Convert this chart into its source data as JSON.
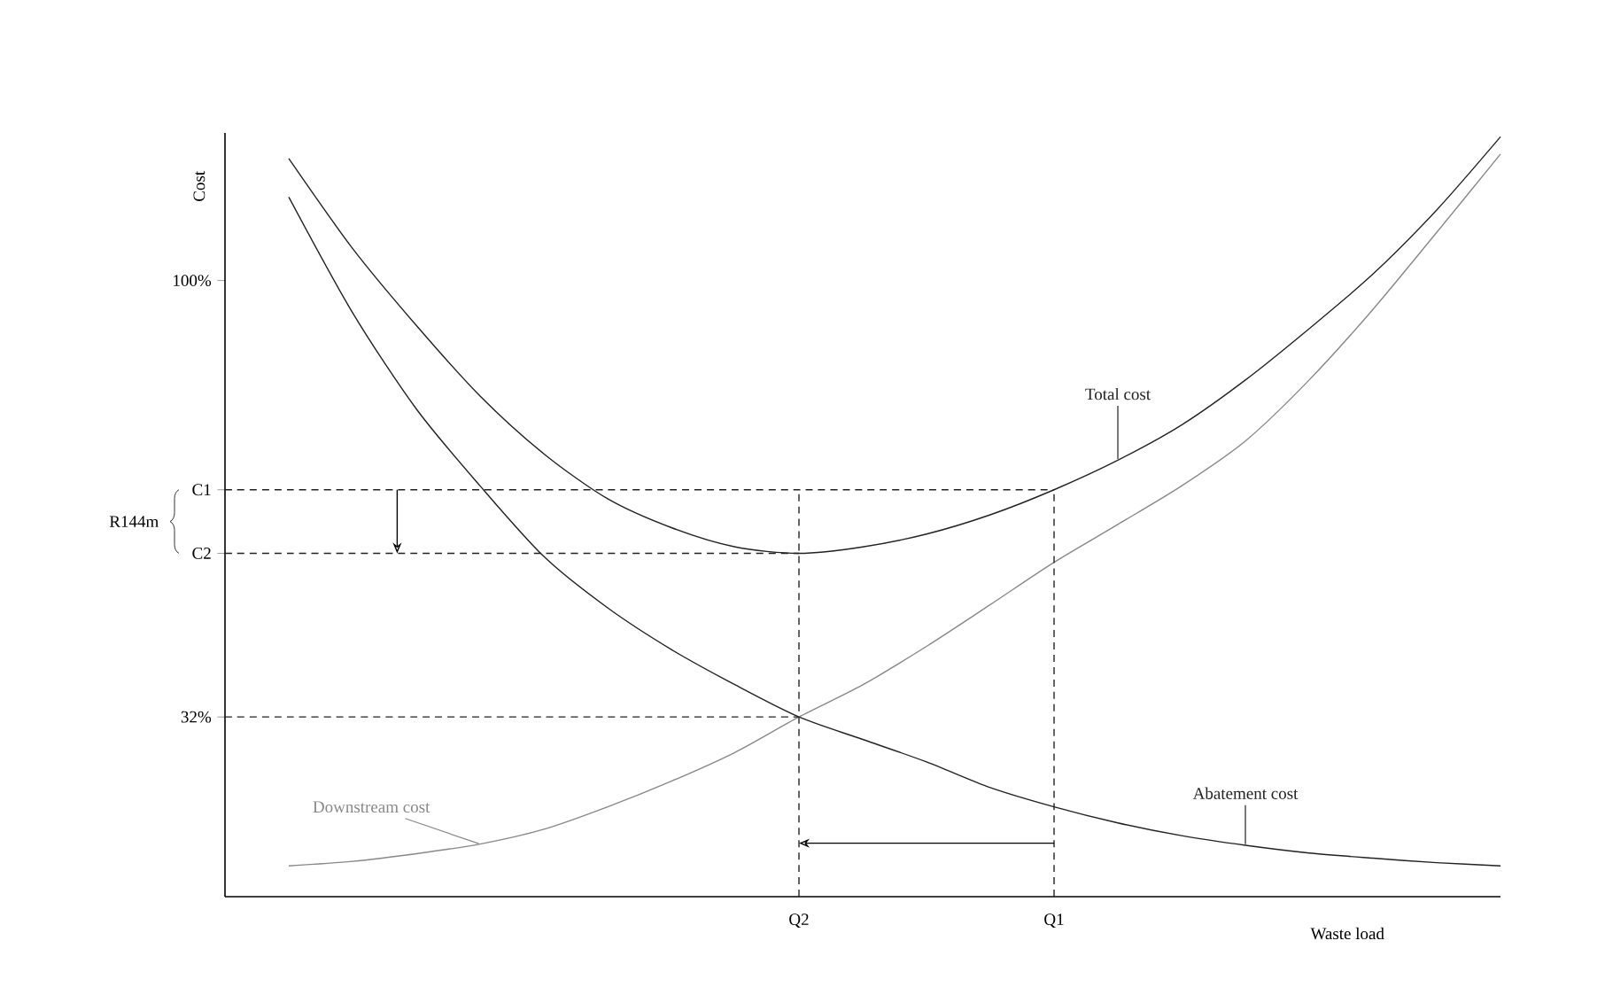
{
  "chart_data": {
    "type": "line",
    "xlabel": "Waste load",
    "ylabel": "Cost",
    "ylim": [
      4,
      123
    ],
    "categories": [
      null,
      null,
      null,
      null,
      null,
      null,
      null,
      null,
      null,
      "Q2",
      null,
      null,
      null,
      "Q1",
      null,
      null,
      null,
      null,
      null,
      null,
      null
    ],
    "yticks": [
      {
        "value": 100,
        "label": "100%"
      },
      {
        "value": 67.4,
        "label": "C1"
      },
      {
        "value": 57.5,
        "label": "C2"
      },
      {
        "value": 32,
        "label": "32%"
      }
    ],
    "annotations": [
      "R144m"
    ],
    "grid": false,
    "marker": "none",
    "line_style": "solid",
    "ref_lines": [
      {
        "axis": "x",
        "value": "Q2",
        "color": "#222222",
        "line_style": "dashed"
      },
      {
        "axis": "x",
        "value": "Q1",
        "color": "#222222",
        "line_style": "dashed"
      }
    ],
    "series": [
      {
        "name": "Total cost",
        "color": "#222222",
        "values": [
          null,
          119,
          105,
          93,
          82,
          73,
          66,
          61.5,
          58.5,
          57.5,
          58.5,
          60.5,
          63.5,
          67.4,
          72,
          77.5,
          84.5,
          92.5,
          101,
          111,
          122.4
        ]
      },
      {
        "name": "Abatement cost",
        "color": "#222222",
        "values": [
          null,
          113,
          95,
          80,
          68,
          57,
          49,
          42.5,
          37,
          32,
          28.5,
          25,
          21,
          18,
          15.5,
          13.5,
          12,
          10.8,
          10,
          9.3,
          8.8
        ]
      },
      {
        "name": "Downstream cost",
        "color": "#888888",
        "values": [
          null,
          8.8,
          9.5,
          10.7,
          12.2,
          14.5,
          18,
          22,
          26.5,
          32,
          37,
          43,
          49.5,
          56.1,
          62,
          68,
          75,
          84.5,
          95.5,
          107.5,
          119.7
        ]
      },
      {
        "color": "#222222",
        "line_style": "dashed",
        "values": [
          67.4,
          67.4,
          67.4,
          67.4,
          67.4,
          67.4,
          67.4,
          67.4,
          67.4,
          67.4,
          67.4,
          67.4,
          67.4,
          67.4,
          null,
          null,
          null,
          null,
          null,
          null,
          null
        ]
      },
      {
        "color": "#222222",
        "line_style": "dashed",
        "values": [
          57.5,
          57.5,
          57.5,
          57.5,
          57.5,
          57.5,
          57.5,
          57.5,
          57.5,
          57.5,
          null,
          null,
          null,
          null,
          null,
          null,
          null,
          null,
          null,
          null,
          null
        ]
      },
      {
        "color": "#222222",
        "line_style": "dashed",
        "values": [
          32,
          32,
          32,
          32,
          32,
          32,
          32,
          32,
          32,
          32,
          null,
          null,
          null,
          null,
          null,
          null,
          null,
          null,
          null,
          null,
          null
        ]
      }
    ]
  }
}
